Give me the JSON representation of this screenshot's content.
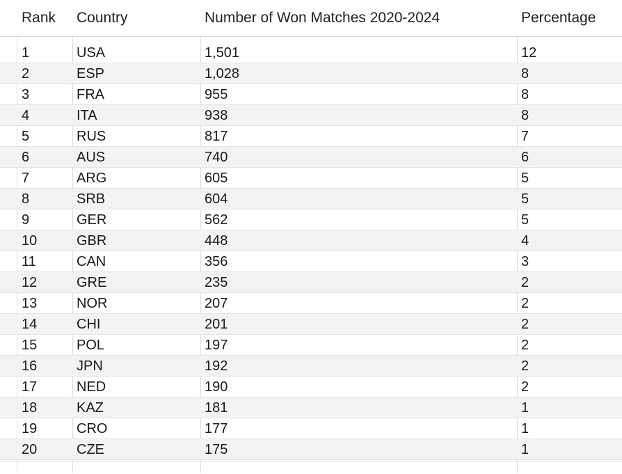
{
  "table": {
    "headers": {
      "rank": "Rank",
      "country": "Country",
      "wins": "Number of Won Matches 2020-2024",
      "percentage": "Percentage"
    },
    "rows": [
      {
        "rank": "1",
        "country": "USA",
        "wins": "1,501",
        "percentage": "12"
      },
      {
        "rank": "2",
        "country": "ESP",
        "wins": "1,028",
        "percentage": "8"
      },
      {
        "rank": "3",
        "country": "FRA",
        "wins": "955",
        "percentage": "8"
      },
      {
        "rank": "4",
        "country": "ITA",
        "wins": "938",
        "percentage": "8"
      },
      {
        "rank": "5",
        "country": "RUS",
        "wins": "817",
        "percentage": "7"
      },
      {
        "rank": "6",
        "country": "AUS",
        "wins": "740",
        "percentage": "6"
      },
      {
        "rank": "7",
        "country": "ARG",
        "wins": "605",
        "percentage": "5"
      },
      {
        "rank": "8",
        "country": "SRB",
        "wins": "604",
        "percentage": "5"
      },
      {
        "rank": "9",
        "country": "GER",
        "wins": "562",
        "percentage": "5"
      },
      {
        "rank": "10",
        "country": "GBR",
        "wins": "448",
        "percentage": "4"
      },
      {
        "rank": "11",
        "country": "CAN",
        "wins": "356",
        "percentage": "3"
      },
      {
        "rank": "12",
        "country": "GRE",
        "wins": "235",
        "percentage": "2"
      },
      {
        "rank": "13",
        "country": "NOR",
        "wins": "207",
        "percentage": "2"
      },
      {
        "rank": "14",
        "country": "CHI",
        "wins": "201",
        "percentage": "2"
      },
      {
        "rank": "15",
        "country": "POL",
        "wins": "197",
        "percentage": "2"
      },
      {
        "rank": "16",
        "country": "JPN",
        "wins": "192",
        "percentage": "2"
      },
      {
        "rank": "17",
        "country": "NED",
        "wins": "190",
        "percentage": "2"
      },
      {
        "rank": "18",
        "country": "KAZ",
        "wins": "181",
        "percentage": "1"
      },
      {
        "rank": "19",
        "country": "CRO",
        "wins": "177",
        "percentage": "1"
      },
      {
        "rank": "20",
        "country": "CZE",
        "wins": "175",
        "percentage": "1"
      }
    ]
  }
}
